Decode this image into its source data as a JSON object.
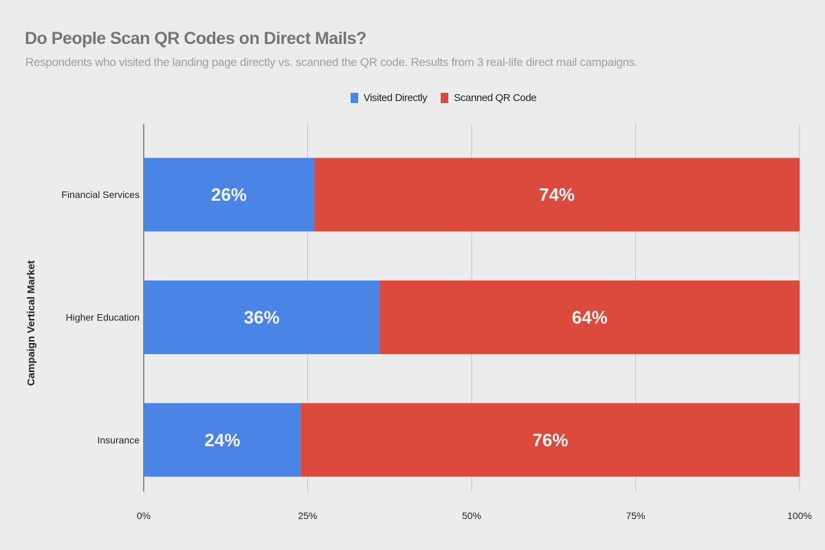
{
  "chart_data": {
    "type": "bar",
    "orientation": "horizontal",
    "stacked": true,
    "title": "Do People Scan QR Codes on Direct Mails?",
    "subtitle": "Respondents who visited the landing page directly vs. scanned the QR code. Results from 3 real-life direct mail campaigns.",
    "ylabel": "Campaign Vertical Market",
    "xlabel": "",
    "categories": [
      "Financial Services",
      "Higher Education",
      "Insurance"
    ],
    "series": [
      {
        "name": "Visited Directly",
        "color": "#4a84e4",
        "values": [
          26,
          36,
          24
        ],
        "labels": [
          "26%",
          "36%",
          "24%"
        ]
      },
      {
        "name": "Scanned QR Code",
        "color": "#db4a3d",
        "values": [
          74,
          64,
          76
        ],
        "labels": [
          "74%",
          "64%",
          "76%"
        ]
      }
    ],
    "xlim": [
      0,
      100
    ],
    "xticks": [
      0,
      25,
      50,
      75,
      100
    ],
    "xtick_labels": [
      "0%",
      "25%",
      "50%",
      "75%",
      "100%"
    ],
    "grid": true,
    "legend": "top-center"
  }
}
